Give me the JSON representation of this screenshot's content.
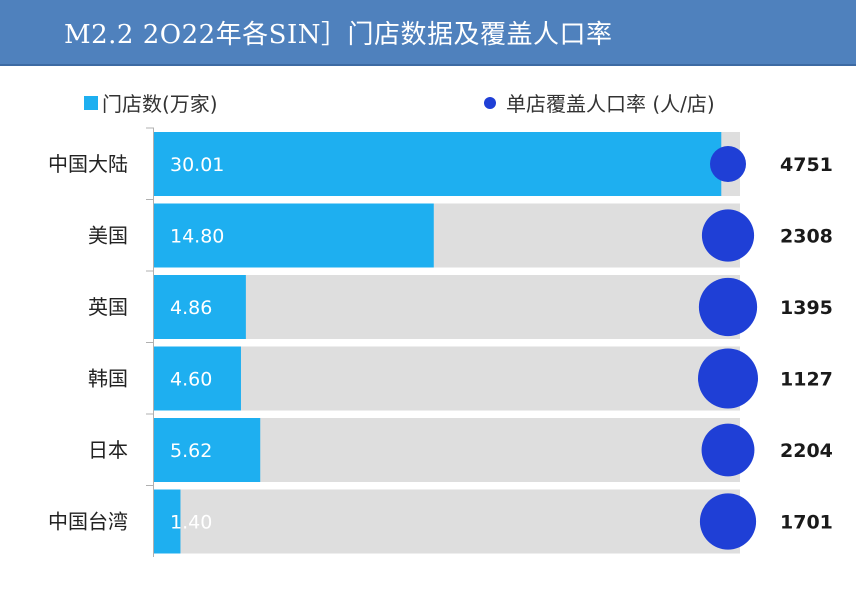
{
  "header": {
    "title": "M2.2 2O22年各SIN］门店数据及覆盖人口率"
  },
  "chart_data": {
    "type": "bar",
    "categories": [
      "中国大陆",
      "美国",
      "英国",
      "韩国",
      "日本",
      "中国台湾"
    ],
    "series": [
      {
        "name": "门店数(万家)",
        "values": [
          30.01,
          14.8,
          4.86,
          4.6,
          5.62,
          1.4
        ],
        "labels": [
          "30.01",
          "14.80",
          "4.86",
          "4.60",
          "5.62",
          "1.40"
        ],
        "color": "#1eaff0"
      },
      {
        "name": "单店覆盖人口率 (人/店)",
        "values": [
          4751,
          2308,
          1395,
          1127,
          2204,
          1701
        ],
        "labels": [
          "4751",
          "2308",
          "1395",
          "1127",
          "2204",
          "1701"
        ],
        "color": "#1f3fd6"
      }
    ],
    "xlim": [
      0,
      31
    ],
    "track_color": "#dedede",
    "legend_position": "top"
  }
}
